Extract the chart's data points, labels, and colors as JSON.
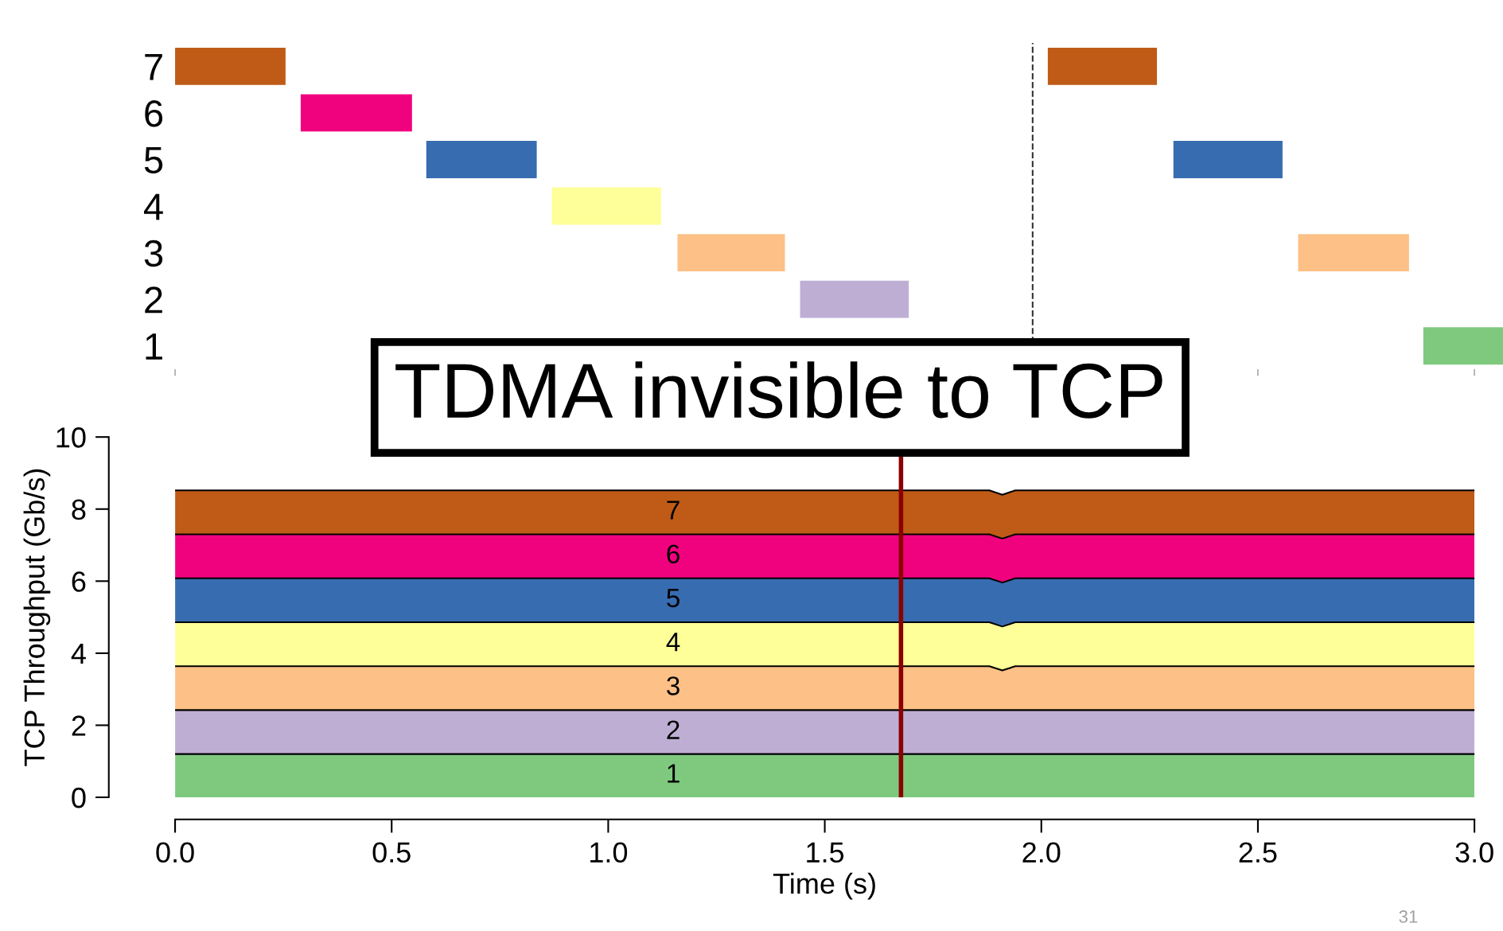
{
  "chart_data": [
    {
      "type": "bar",
      "orientation": "horizontal",
      "categories": [
        "7",
        "6",
        "5",
        "4",
        "3",
        "2",
        "1"
      ],
      "xlim": [
        0,
        3.066
      ],
      "xticks": [
        0,
        0.5,
        1,
        1.5,
        2,
        2.5,
        3
      ],
      "tick_labels": "y",
      "series": [
        {
          "colors": [
            "#bf5b17",
            "#f0027f",
            "#386cb0",
            "#ffff99",
            "#fdc086",
            "#beaed4",
            "#7fc97f"
          ],
          "base": [
            0,
            0.29,
            0.58,
            0.87,
            1.16,
            1.443,
            null
          ],
          "values": [
            0.255,
            0.257,
            0.255,
            0.252,
            0.248,
            0.251,
            null
          ]
        },
        {
          "colors": [
            "#bf5b17",
            "#f0027f",
            "#386cb0",
            "#ffff99",
            "#fdc086",
            "#beaed4",
            "#7fc97f"
          ],
          "base": [
            2.015,
            null,
            2.305,
            null,
            2.593,
            null,
            2.882
          ],
          "values": [
            0.252,
            null,
            0.252,
            null,
            0.256,
            null,
            0.184
          ]
        }
      ],
      "ref_lines": [
        {
          "axis": "x",
          "value": 1.98,
          "line_style": "dashed",
          "color": "#333333"
        }
      ],
      "annotations": [
        "TDMA invisible to TCP"
      ]
    },
    {
      "type": "area",
      "stacked": true,
      "x": [
        0,
        1.88,
        1.91,
        1.94,
        3.0
      ],
      "xlim": [
        0,
        3
      ],
      "ylim": [
        0,
        10
      ],
      "xticks": [
        {
          "value": 0,
          "label": "0.0"
        },
        0.5,
        {
          "value": 1,
          "label": "1.0"
        },
        1.5,
        {
          "value": 2,
          "label": "2.0"
        },
        2.5,
        {
          "value": 3,
          "label": "3.0"
        }
      ],
      "yticks": [
        0,
        2,
        4,
        6,
        8,
        10
      ],
      "xlabel": "Time (s)",
      "ylabel": "TCP Throughput (Gb/s)",
      "series": [
        {
          "name": "1",
          "color": "#7fc97f",
          "values": [
            1.2,
            1.2,
            1.2,
            1.2,
            1.2
          ]
        },
        {
          "name": "2",
          "color": "#beaed4",
          "values": [
            1.22,
            1.22,
            1.22,
            1.22,
            1.22
          ]
        },
        {
          "name": "3",
          "color": "#fdc086",
          "values": [
            1.22,
            1.22,
            1.1,
            1.22,
            1.22
          ]
        },
        {
          "name": "4",
          "color": "#ffff99",
          "values": [
            1.22,
            1.22,
            1.22,
            1.22,
            1.22
          ]
        },
        {
          "name": "5",
          "color": "#386cb0",
          "values": [
            1.22,
            1.22,
            1.22,
            1.22,
            1.22
          ]
        },
        {
          "name": "6",
          "color": "#f0027f",
          "values": [
            1.22,
            1.22,
            1.22,
            1.22,
            1.22
          ]
        },
        {
          "name": "7",
          "color": "#bf5b17",
          "values": [
            1.22,
            1.22,
            1.22,
            1.22,
            1.22
          ]
        }
      ],
      "ref_lines": [
        {
          "axis": "x",
          "value": 1.676,
          "color": "#8b0000"
        }
      ],
      "annotations": [
        "31"
      ]
    }
  ]
}
